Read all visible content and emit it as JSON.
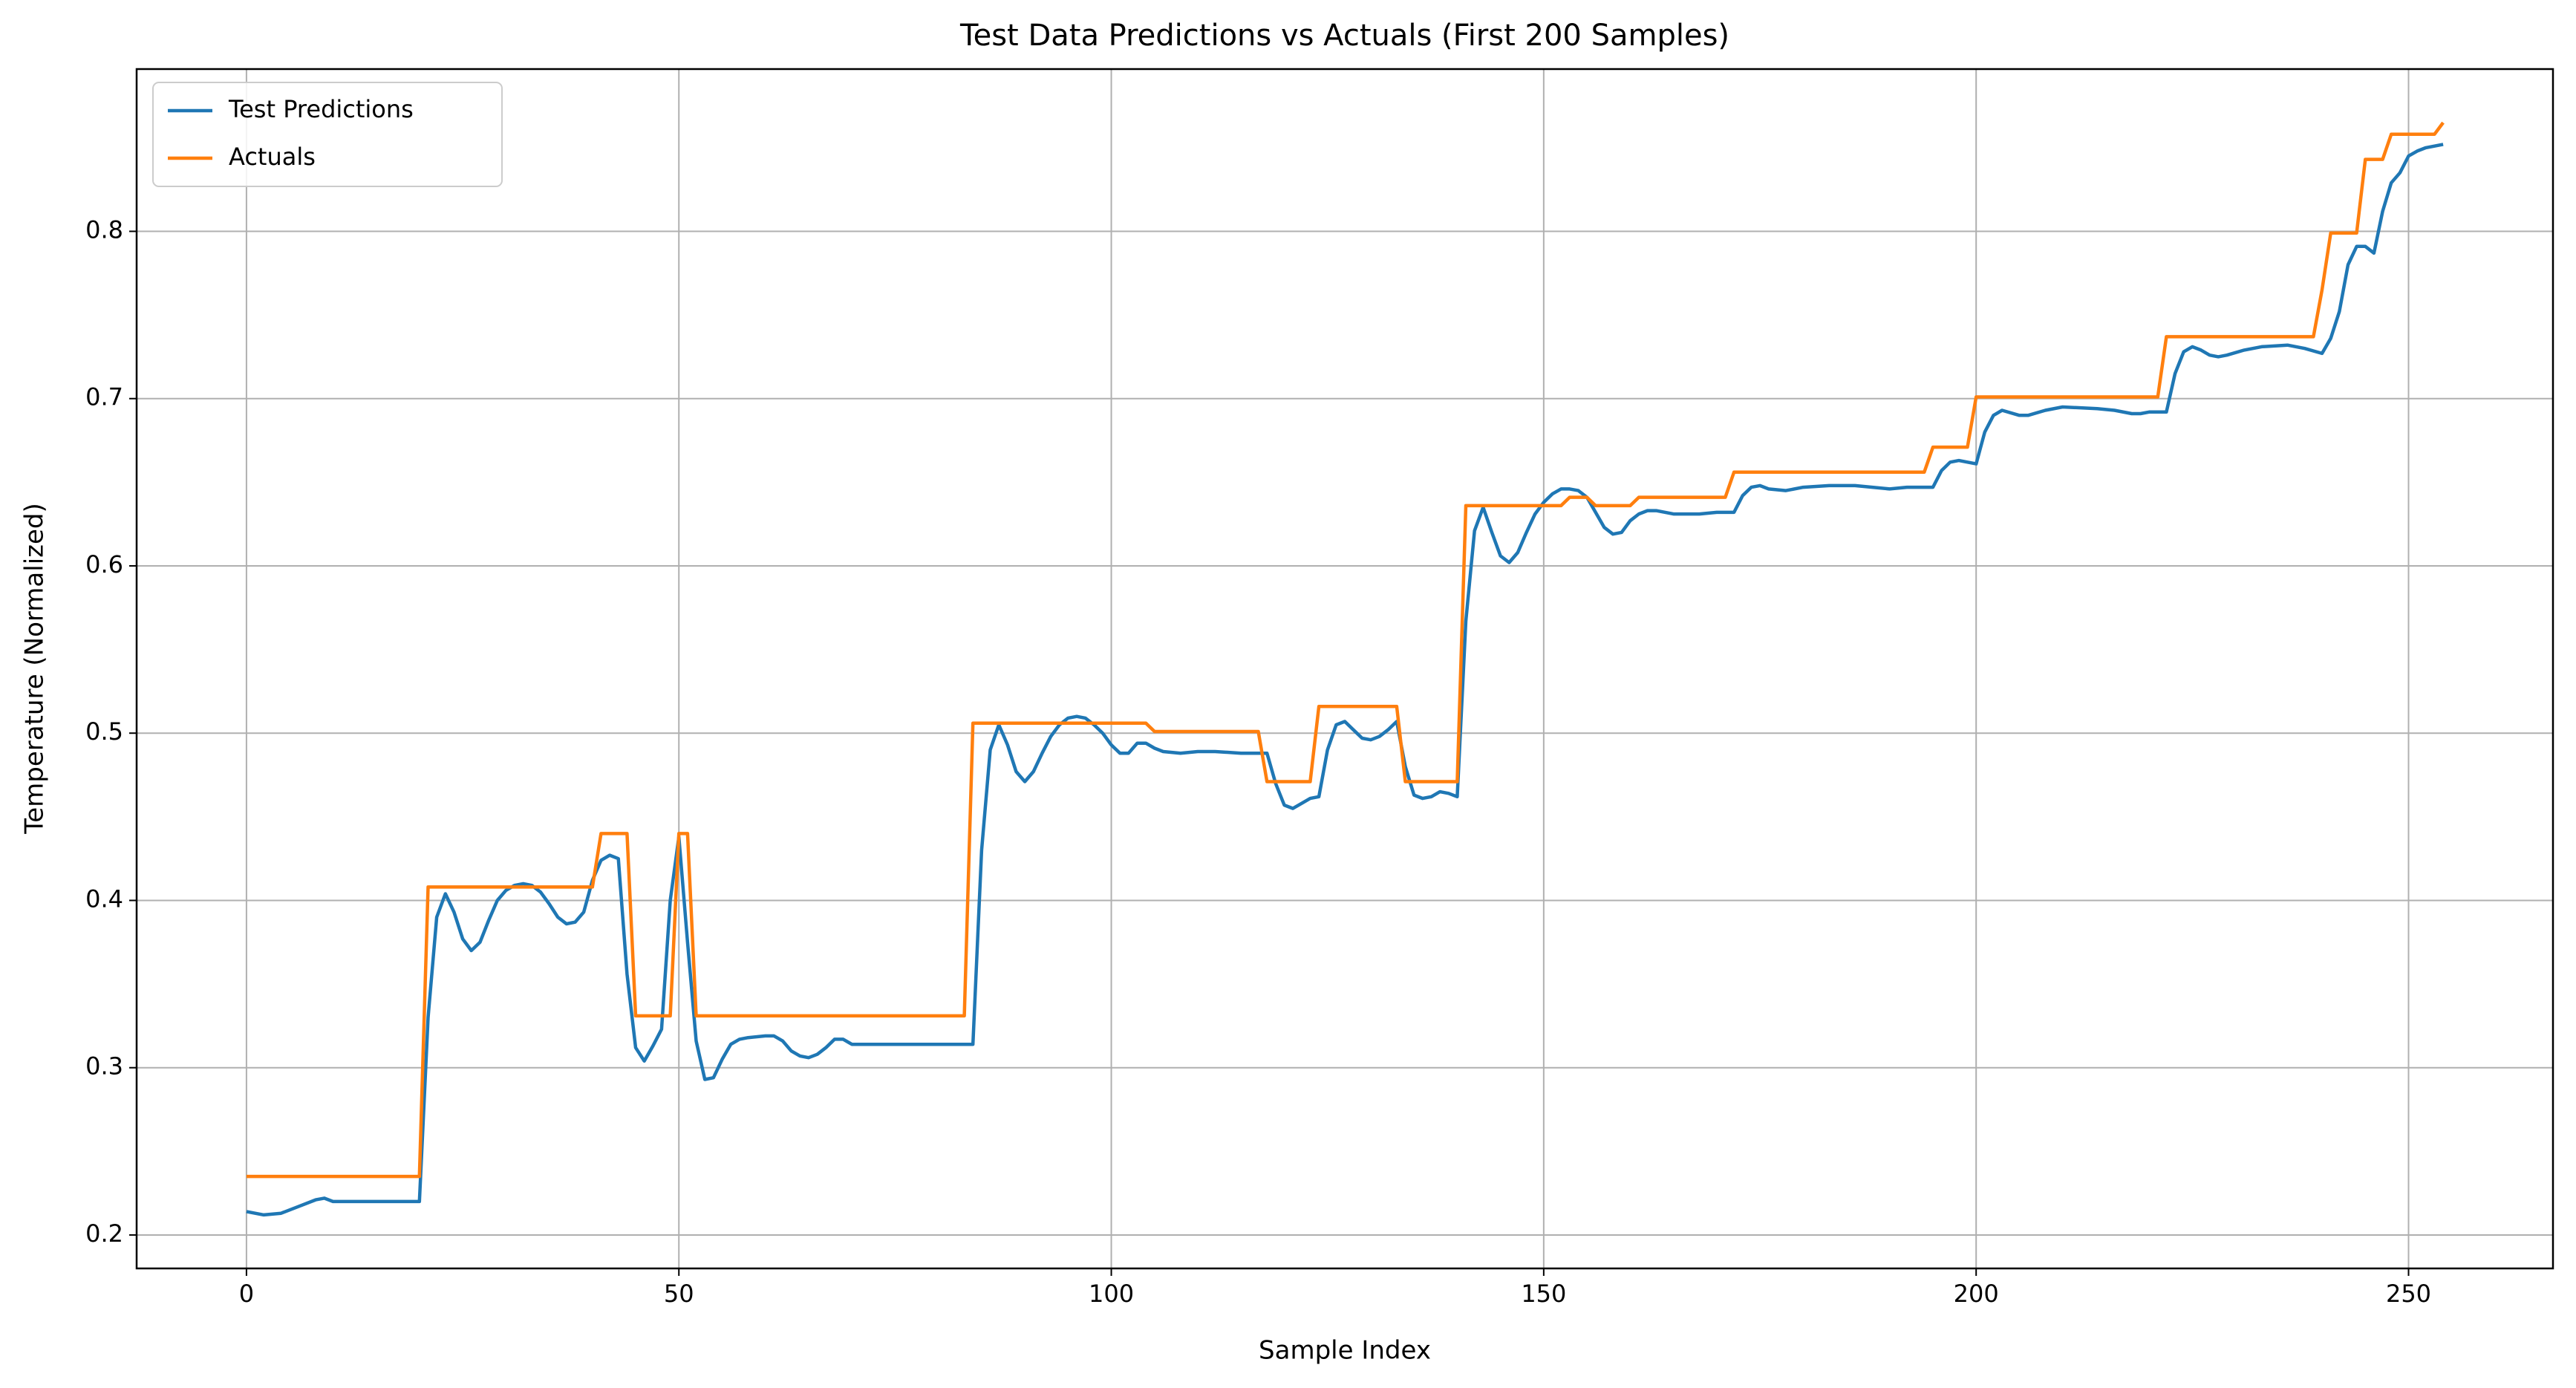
{
  "chart_data": {
    "type": "line",
    "title": "Test Data Predictions vs Actuals (First 200 Samples)",
    "xlabel": "Sample Index",
    "ylabel": "Temperature (Normalized)",
    "xlim": [
      -12.7,
      266.7
    ],
    "xticks": [
      0,
      50,
      100,
      150,
      200,
      250
    ],
    "ylim": [
      0.18,
      0.897
    ],
    "yticks": [
      0.2,
      0.3,
      0.4,
      0.5,
      0.6,
      0.7,
      0.8
    ],
    "grid": true,
    "legend": "upper-left",
    "series": [
      {
        "name": "Test Predictions",
        "color": "#1f77b4",
        "x": [
          0,
          2,
          4,
          6,
          8,
          9,
          10,
          20,
          21,
          22,
          23,
          24,
          25,
          26,
          27,
          28,
          29,
          30,
          31,
          32,
          33,
          34,
          35,
          36,
          37,
          38,
          39,
          40,
          41,
          42,
          43,
          44,
          45,
          46,
          47,
          48,
          49,
          50,
          51,
          52,
          53,
          54,
          55,
          56,
          57,
          58,
          60,
          61,
          62,
          63,
          64,
          65,
          66,
          67,
          68,
          69,
          70,
          84,
          85,
          86,
          87,
          88,
          89,
          90,
          91,
          92,
          93,
          94,
          95,
          96,
          97,
          98,
          99,
          100,
          101,
          102,
          103,
          104,
          105,
          106,
          108,
          110,
          112,
          115,
          118,
          119,
          120,
          121,
          122,
          123,
          124,
          125,
          126,
          127,
          128,
          129,
          130,
          131,
          132,
          133,
          134,
          135,
          136,
          137,
          138,
          139,
          140,
          141,
          142,
          143,
          144,
          145,
          146,
          147,
          148,
          149,
          150,
          151,
          152,
          153,
          154,
          155,
          156,
          157,
          158,
          159,
          160,
          161,
          162,
          163,
          165,
          168,
          170,
          172,
          173,
          174,
          175,
          176,
          178,
          180,
          183,
          186,
          190,
          192,
          195,
          196,
          197,
          198,
          200,
          201,
          202,
          203,
          205,
          206,
          208,
          210,
          214,
          216,
          218,
          219,
          220,
          222,
          223,
          224,
          225,
          226,
          227,
          228,
          229,
          231,
          233,
          236,
          238,
          240,
          241,
          242,
          243,
          244,
          245,
          246,
          247,
          248,
          249,
          250,
          251,
          252,
          254
        ],
        "values": [
          0.214,
          0.212,
          0.213,
          0.217,
          0.221,
          0.222,
          0.22,
          0.22,
          0.33,
          0.39,
          0.404,
          0.393,
          0.377,
          0.37,
          0.375,
          0.388,
          0.4,
          0.406,
          0.409,
          0.41,
          0.409,
          0.405,
          0.398,
          0.39,
          0.386,
          0.387,
          0.393,
          0.412,
          0.424,
          0.427,
          0.425,
          0.356,
          0.312,
          0.304,
          0.313,
          0.323,
          0.4,
          0.438,
          0.375,
          0.316,
          0.293,
          0.294,
          0.305,
          0.314,
          0.317,
          0.318,
          0.319,
          0.319,
          0.316,
          0.31,
          0.307,
          0.306,
          0.308,
          0.312,
          0.317,
          0.317,
          0.314,
          0.314,
          0.43,
          0.49,
          0.505,
          0.493,
          0.477,
          0.471,
          0.477,
          0.488,
          0.498,
          0.505,
          0.509,
          0.51,
          0.509,
          0.505,
          0.5,
          0.493,
          0.488,
          0.488,
          0.494,
          0.494,
          0.491,
          0.489,
          0.488,
          0.489,
          0.489,
          0.488,
          0.488,
          0.47,
          0.457,
          0.455,
          0.458,
          0.461,
          0.462,
          0.49,
          0.505,
          0.507,
          0.502,
          0.497,
          0.496,
          0.498,
          0.502,
          0.507,
          0.48,
          0.463,
          0.461,
          0.462,
          0.465,
          0.464,
          0.462,
          0.567,
          0.621,
          0.635,
          0.62,
          0.606,
          0.602,
          0.608,
          0.62,
          0.631,
          0.638,
          0.643,
          0.646,
          0.646,
          0.645,
          0.641,
          0.632,
          0.623,
          0.619,
          0.62,
          0.627,
          0.631,
          0.633,
          0.633,
          0.631,
          0.631,
          0.632,
          0.632,
          0.642,
          0.647,
          0.648,
          0.646,
          0.645,
          0.647,
          0.648,
          0.648,
          0.646,
          0.647,
          0.647,
          0.657,
          0.662,
          0.663,
          0.661,
          0.68,
          0.69,
          0.693,
          0.69,
          0.69,
          0.693,
          0.695,
          0.694,
          0.693,
          0.691,
          0.691,
          0.692,
          0.692,
          0.715,
          0.728,
          0.731,
          0.729,
          0.726,
          0.725,
          0.726,
          0.729,
          0.731,
          0.732,
          0.73,
          0.727,
          0.736,
          0.752,
          0.78,
          0.791,
          0.791,
          0.787,
          0.812,
          0.829,
          0.835,
          0.845,
          0.848,
          0.85,
          0.852
        ]
      },
      {
        "name": "Actuals",
        "color": "#ff7f0e",
        "x": [
          0,
          20,
          21,
          40,
          41,
          44,
          45,
          49,
          50,
          51,
          52,
          83,
          84,
          104,
          105,
          117,
          118,
          123,
          124,
          133,
          134,
          140,
          141,
          152,
          153,
          155,
          156,
          160,
          161,
          171,
          172,
          194,
          195,
          199,
          200,
          221,
          222,
          239,
          240,
          241,
          244,
          245,
          247,
          248,
          253,
          254
        ],
        "values": [
          0.235,
          0.235,
          0.408,
          0.408,
          0.44,
          0.44,
          0.331,
          0.331,
          0.44,
          0.44,
          0.331,
          0.331,
          0.506,
          0.506,
          0.501,
          0.501,
          0.471,
          0.471,
          0.516,
          0.516,
          0.471,
          0.471,
          0.636,
          0.636,
          0.641,
          0.641,
          0.636,
          0.636,
          0.641,
          0.641,
          0.656,
          0.656,
          0.671,
          0.671,
          0.701,
          0.701,
          0.737,
          0.737,
          0.765,
          0.799,
          0.799,
          0.843,
          0.843,
          0.858,
          0.858,
          0.865
        ]
      }
    ]
  }
}
